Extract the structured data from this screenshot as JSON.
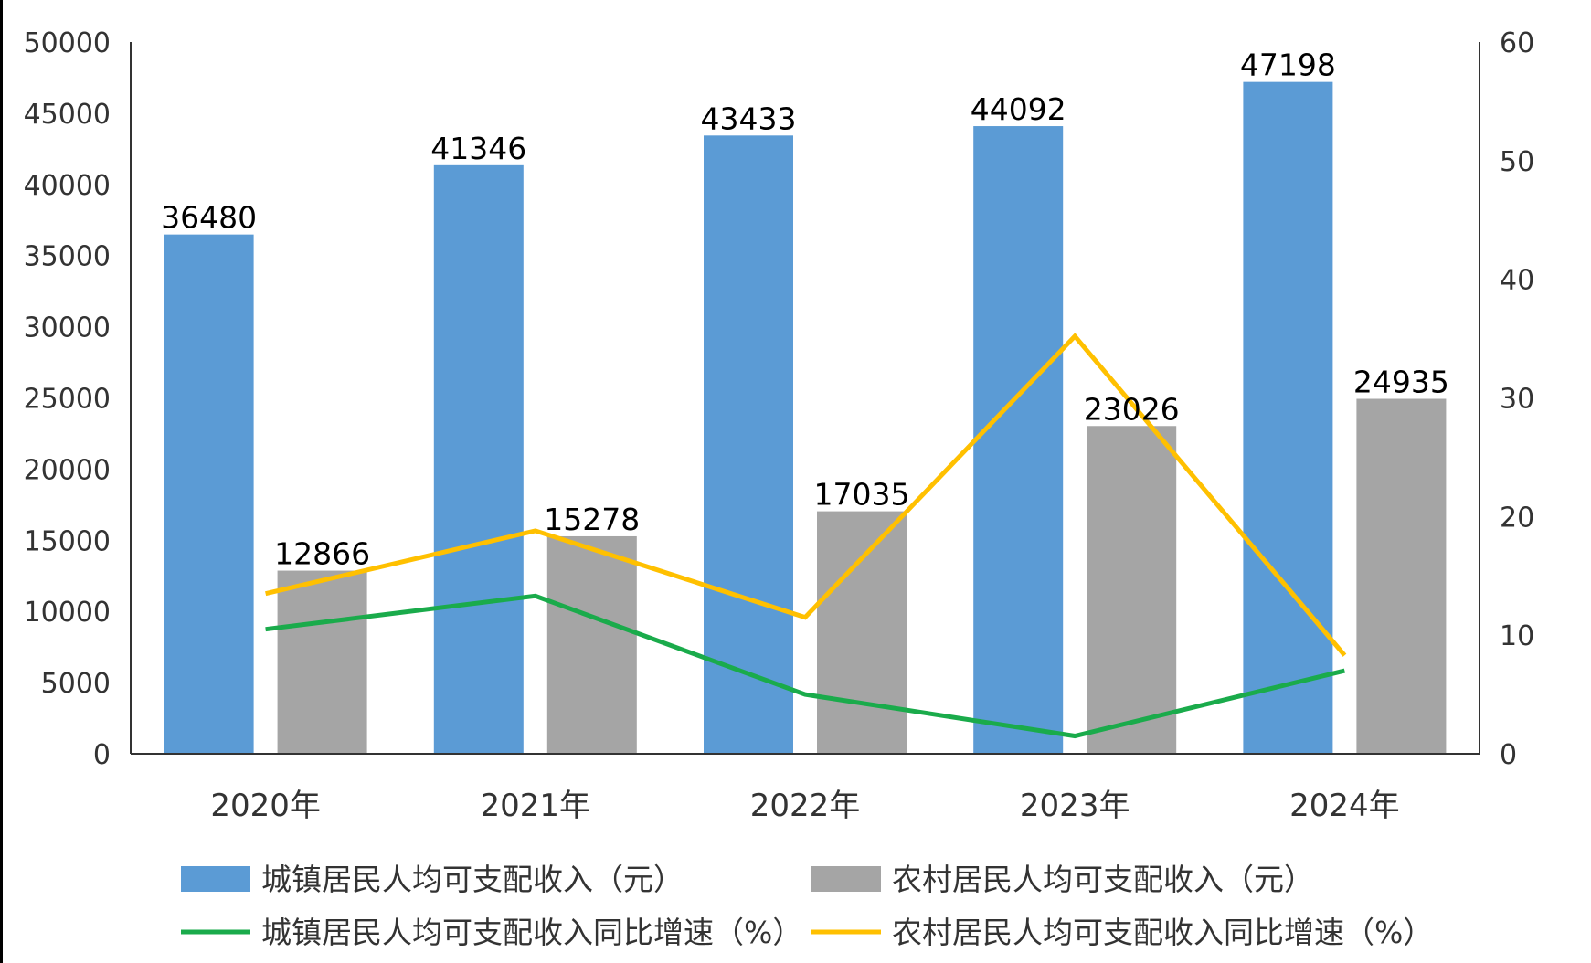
{
  "chart_data": {
    "type": "bar",
    "categories": [
      "2020年",
      "2021年",
      "2022年",
      "2023年",
      "2024年"
    ],
    "series": [
      {
        "name": "城镇居民人均可支配收入（元）",
        "kind": "bar",
        "axis": "left",
        "color": "#5B9BD5",
        "values": [
          36480,
          41346,
          43433,
          44092,
          47198
        ]
      },
      {
        "name": "农村居民人均可支配收入（元）",
        "kind": "bar",
        "axis": "left",
        "color": "#A5A5A5",
        "values": [
          12866,
          15278,
          17035,
          23026,
          24935
        ]
      },
      {
        "name": "城镇居民人均可支配收入同比增速（%）",
        "kind": "line",
        "axis": "right",
        "color": "#1AAB4B",
        "values": [
          10.5,
          13.3,
          5.0,
          1.5,
          7.0
        ]
      },
      {
        "name": "农村居民人均可支配收入同比增速（%）",
        "kind": "line",
        "axis": "right",
        "color": "#FFC000",
        "values": [
          13.5,
          18.8,
          11.5,
          35.2,
          8.3
        ]
      }
    ],
    "y_left": {
      "min": 0,
      "max": 50000,
      "ticks": [
        "0",
        "5000",
        "10000",
        "15000",
        "20000",
        "25000",
        "30000",
        "35000",
        "40000",
        "45000",
        "50000"
      ]
    },
    "y_right": {
      "min": 0,
      "max": 60,
      "ticks": [
        "0",
        "10",
        "20",
        "30",
        "40",
        "50",
        "60"
      ]
    },
    "grid": false,
    "legend_position": "bottom"
  }
}
